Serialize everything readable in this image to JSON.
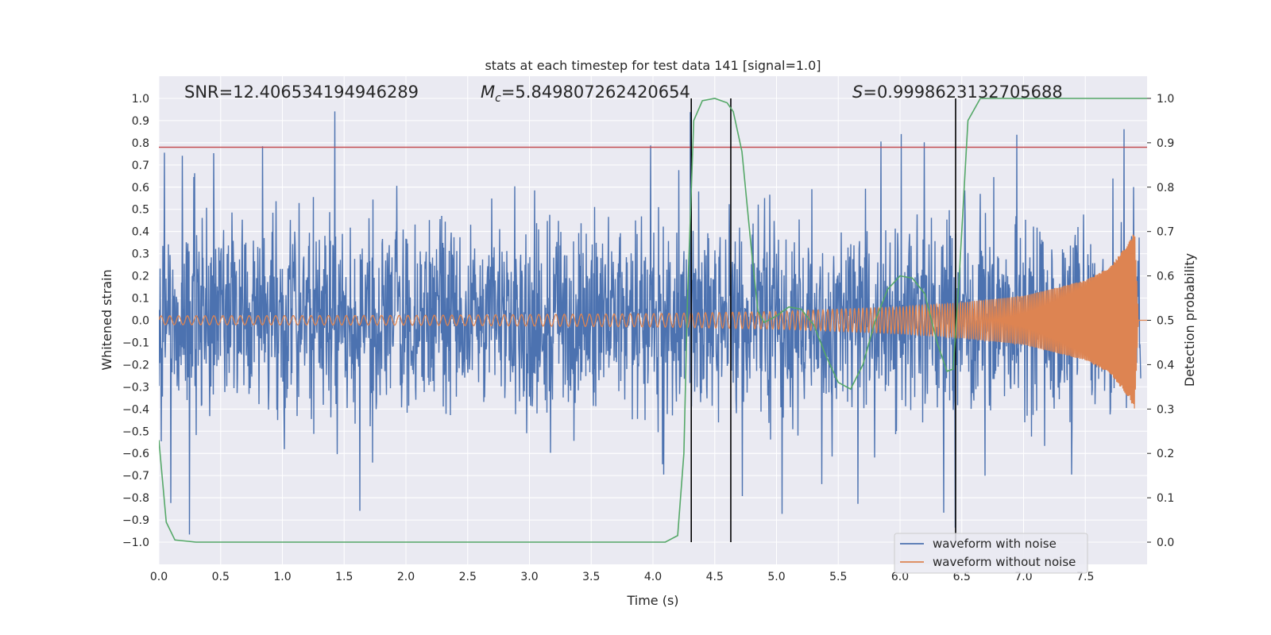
{
  "chart_data": {
    "type": "line",
    "title": "stats at each timestep for test data 141 [signal=1.0]",
    "xlabel": "Time (s)",
    "ylabel": "Whitened strain",
    "y2label": "Detection probability",
    "xlim": [
      0.0,
      8.0
    ],
    "ylim": [
      -1.1,
      1.1
    ],
    "y2lim": [
      -0.05,
      1.05
    ],
    "x_ticks": [
      "0.0",
      "0.5",
      "1.0",
      "1.5",
      "2.0",
      "2.5",
      "3.0",
      "3.5",
      "4.0",
      "4.5",
      "5.0",
      "5.5",
      "6.0",
      "6.5",
      "7.0",
      "7.5"
    ],
    "y_ticks": [
      "1.0",
      "0.9",
      "0.8",
      "0.7",
      "0.6",
      "0.5",
      "0.4",
      "0.3",
      "0.2",
      "0.1",
      "0.0",
      "−0.1",
      "−0.2",
      "−0.3",
      "−0.4",
      "−0.5",
      "−0.6",
      "−0.7",
      "−0.8",
      "−0.9",
      "−1.0"
    ],
    "y2_ticks": [
      "1.0",
      "0.9",
      "0.8",
      "0.7",
      "0.6",
      "0.5",
      "0.4",
      "0.3",
      "0.2",
      "0.1",
      "0.0"
    ],
    "annotations": {
      "snr": "SNR=12.406534194946289",
      "mc_symbol": "M",
      "mc_sub": "c",
      "mc_value": "=5.849807262420654",
      "s_symbol": "S",
      "s_value": "=0.9998623132705688"
    },
    "threshold_y": 0.78,
    "vertical_lines_x": [
      4.31,
      4.63,
      6.45
    ],
    "colors": {
      "noise": "#4c72b0",
      "signal": "#dd8452",
      "probability": "#55a868",
      "threshold": "#c44e52",
      "vline": "#000000",
      "plot_bg": "#eaeaf2",
      "grid": "#ffffff"
    },
    "series": [
      {
        "name": "waveform with noise",
        "description": "whitened noisy strain, amplitude roughly -1.0 to 0.95 across 0-7.95 s"
      },
      {
        "name": "waveform without noise",
        "description": "chirp signal, amplitude ~0.02 growing to ~0.4 at 7.9 s then dropping to 0",
        "amplitude_points": [
          [
            0.0,
            0.02
          ],
          [
            2.0,
            0.022
          ],
          [
            4.0,
            0.03
          ],
          [
            5.0,
            0.04
          ],
          [
            6.0,
            0.06
          ],
          [
            6.5,
            0.08
          ],
          [
            7.0,
            0.11
          ],
          [
            7.5,
            0.18
          ],
          [
            7.7,
            0.24
          ],
          [
            7.85,
            0.35
          ],
          [
            7.9,
            0.4
          ],
          [
            7.93,
            0.0
          ],
          [
            8.0,
            0.0
          ]
        ]
      },
      {
        "name": "detection probability",
        "axis": "right",
        "points": [
          [
            0.0,
            0.23
          ],
          [
            0.06,
            0.045
          ],
          [
            0.13,
            0.005
          ],
          [
            0.3,
            0.0
          ],
          [
            1.0,
            0.0
          ],
          [
            2.0,
            0.0
          ],
          [
            3.0,
            0.0
          ],
          [
            4.0,
            0.0
          ],
          [
            4.1,
            0.0
          ],
          [
            4.2,
            0.015
          ],
          [
            4.25,
            0.2
          ],
          [
            4.28,
            0.55
          ],
          [
            4.33,
            0.95
          ],
          [
            4.4,
            0.995
          ],
          [
            4.5,
            1.0
          ],
          [
            4.6,
            0.99
          ],
          [
            4.65,
            0.97
          ],
          [
            4.72,
            0.88
          ],
          [
            4.8,
            0.65
          ],
          [
            4.85,
            0.52
          ],
          [
            4.9,
            0.495
          ],
          [
            5.0,
            0.51
          ],
          [
            5.1,
            0.53
          ],
          [
            5.2,
            0.525
          ],
          [
            5.3,
            0.49
          ],
          [
            5.4,
            0.42
          ],
          [
            5.5,
            0.36
          ],
          [
            5.6,
            0.345
          ],
          [
            5.7,
            0.4
          ],
          [
            5.8,
            0.5
          ],
          [
            5.9,
            0.57
          ],
          [
            6.0,
            0.6
          ],
          [
            6.1,
            0.595
          ],
          [
            6.2,
            0.56
          ],
          [
            6.3,
            0.45
          ],
          [
            6.38,
            0.385
          ],
          [
            6.43,
            0.39
          ],
          [
            6.48,
            0.6
          ],
          [
            6.55,
            0.95
          ],
          [
            6.65,
            1.0
          ],
          [
            7.0,
            1.0
          ],
          [
            7.5,
            1.0
          ],
          [
            8.0,
            1.0
          ]
        ]
      }
    ],
    "legend": {
      "position": "bottom-right",
      "entries": [
        "waveform with noise",
        "waveform without noise"
      ]
    },
    "grid": true
  }
}
